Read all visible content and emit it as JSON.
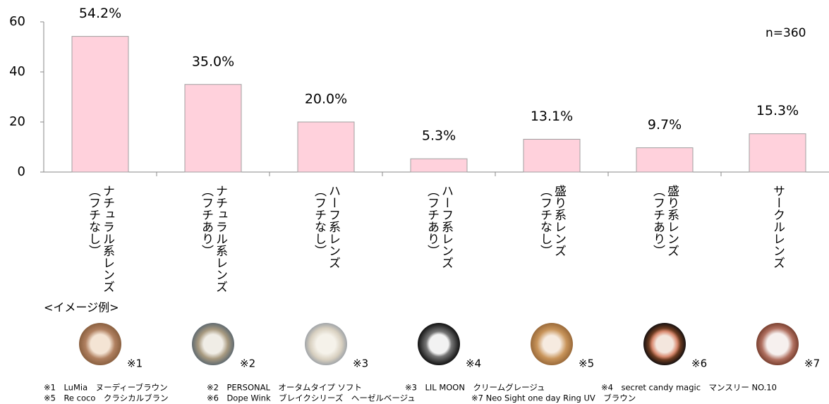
{
  "chart_data": {
    "type": "bar",
    "categories": [
      "ナチュラル系レンズ\n（フチなし）",
      "ナチュラル系レンズ\n（フチあり）",
      "ハーフ系レンズ\n（フチなし）",
      "ハーフ系レンズ\n（フチあり）",
      "盛り系レンズ\n（フチなし）",
      "盛り系レンズ\n（フチあり）",
      "サークルレンズ"
    ],
    "values": [
      54.2,
      35.0,
      20.0,
      5.3,
      13.1,
      9.7,
      15.3
    ],
    "value_labels": [
      "54.2%",
      "35.0%",
      "20.0%",
      "5.3%",
      "13.1%",
      "9.7%",
      "15.3%"
    ],
    "color": "#ffd1dc",
    "ylim": [
      0,
      60
    ],
    "yticks": [
      0,
      20,
      40,
      60
    ],
    "annotation": "n=360"
  },
  "image_examples": {
    "title": "<イメージ例>",
    "markers": [
      "※1",
      "※2",
      "※3",
      "※4",
      "※5",
      "※6",
      "※7"
    ],
    "notes": [
      "※1　LuMia　ヌーディーブラウン",
      "※2　PERSONAL　オータムタイプ ソフト",
      "※3　LIL MOON　クリームグレージュ",
      "※4　secret candy magic　マンスリー NO.10",
      "※5　Re coco　クラシカルブラン",
      "※6　Dope Wink　ブレイクシリーズ　ヘーゼルベージュ",
      "※7 Neo Sight one day Ring UV　ブラウン"
    ]
  }
}
